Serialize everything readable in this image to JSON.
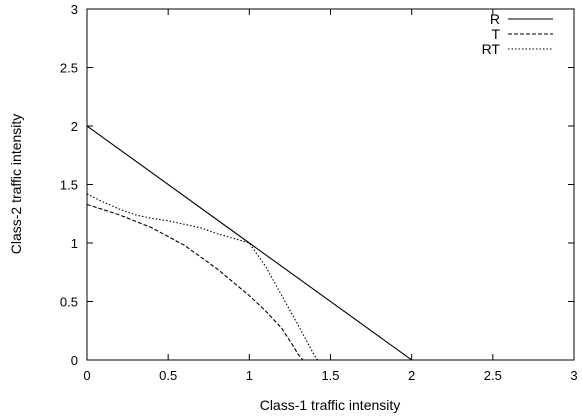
{
  "chart_data": {
    "type": "line",
    "xlabel": "Class-1 traffic intensity",
    "ylabel": "Class-2 traffic intensity",
    "xlim": [
      0,
      3
    ],
    "ylim": [
      0,
      3
    ],
    "xticks": [
      "0",
      "0.5",
      "1",
      "1.5",
      "2",
      "2.5",
      "3"
    ],
    "yticks": [
      "0",
      "0.5",
      "1",
      "1.5",
      "2",
      "2.5",
      "3"
    ],
    "grid": false,
    "legend_position": "top-right",
    "series": [
      {
        "name": "R",
        "style": "solid",
        "points": [
          [
            0,
            2
          ],
          [
            1,
            1
          ],
          [
            2,
            0
          ],
          [
            3,
            0
          ]
        ]
      },
      {
        "name": "T",
        "style": "dashed",
        "points": [
          [
            0,
            1.33
          ],
          [
            0.2,
            1.24
          ],
          [
            0.4,
            1.13
          ],
          [
            0.6,
            0.98
          ],
          [
            0.8,
            0.78
          ],
          [
            1.0,
            0.55
          ],
          [
            1.1,
            0.42
          ],
          [
            1.2,
            0.27
          ],
          [
            1.27,
            0.12
          ],
          [
            1.3,
            0.05
          ],
          [
            1.33,
            0
          ]
        ]
      },
      {
        "name": "RT",
        "style": "dotted",
        "points": [
          [
            0,
            1.42
          ],
          [
            0.1,
            1.35
          ],
          [
            0.2,
            1.29
          ],
          [
            0.3,
            1.24
          ],
          [
            0.4,
            1.21
          ],
          [
            0.5,
            1.19
          ],
          [
            0.6,
            1.16
          ],
          [
            0.7,
            1.13
          ],
          [
            0.8,
            1.08
          ],
          [
            0.9,
            1.04
          ],
          [
            1.0,
            1.0
          ],
          [
            1.1,
            0.8
          ],
          [
            1.2,
            0.55
          ],
          [
            1.3,
            0.3
          ],
          [
            1.37,
            0.12
          ],
          [
            1.4,
            0.04
          ],
          [
            1.42,
            0
          ]
        ]
      }
    ]
  }
}
